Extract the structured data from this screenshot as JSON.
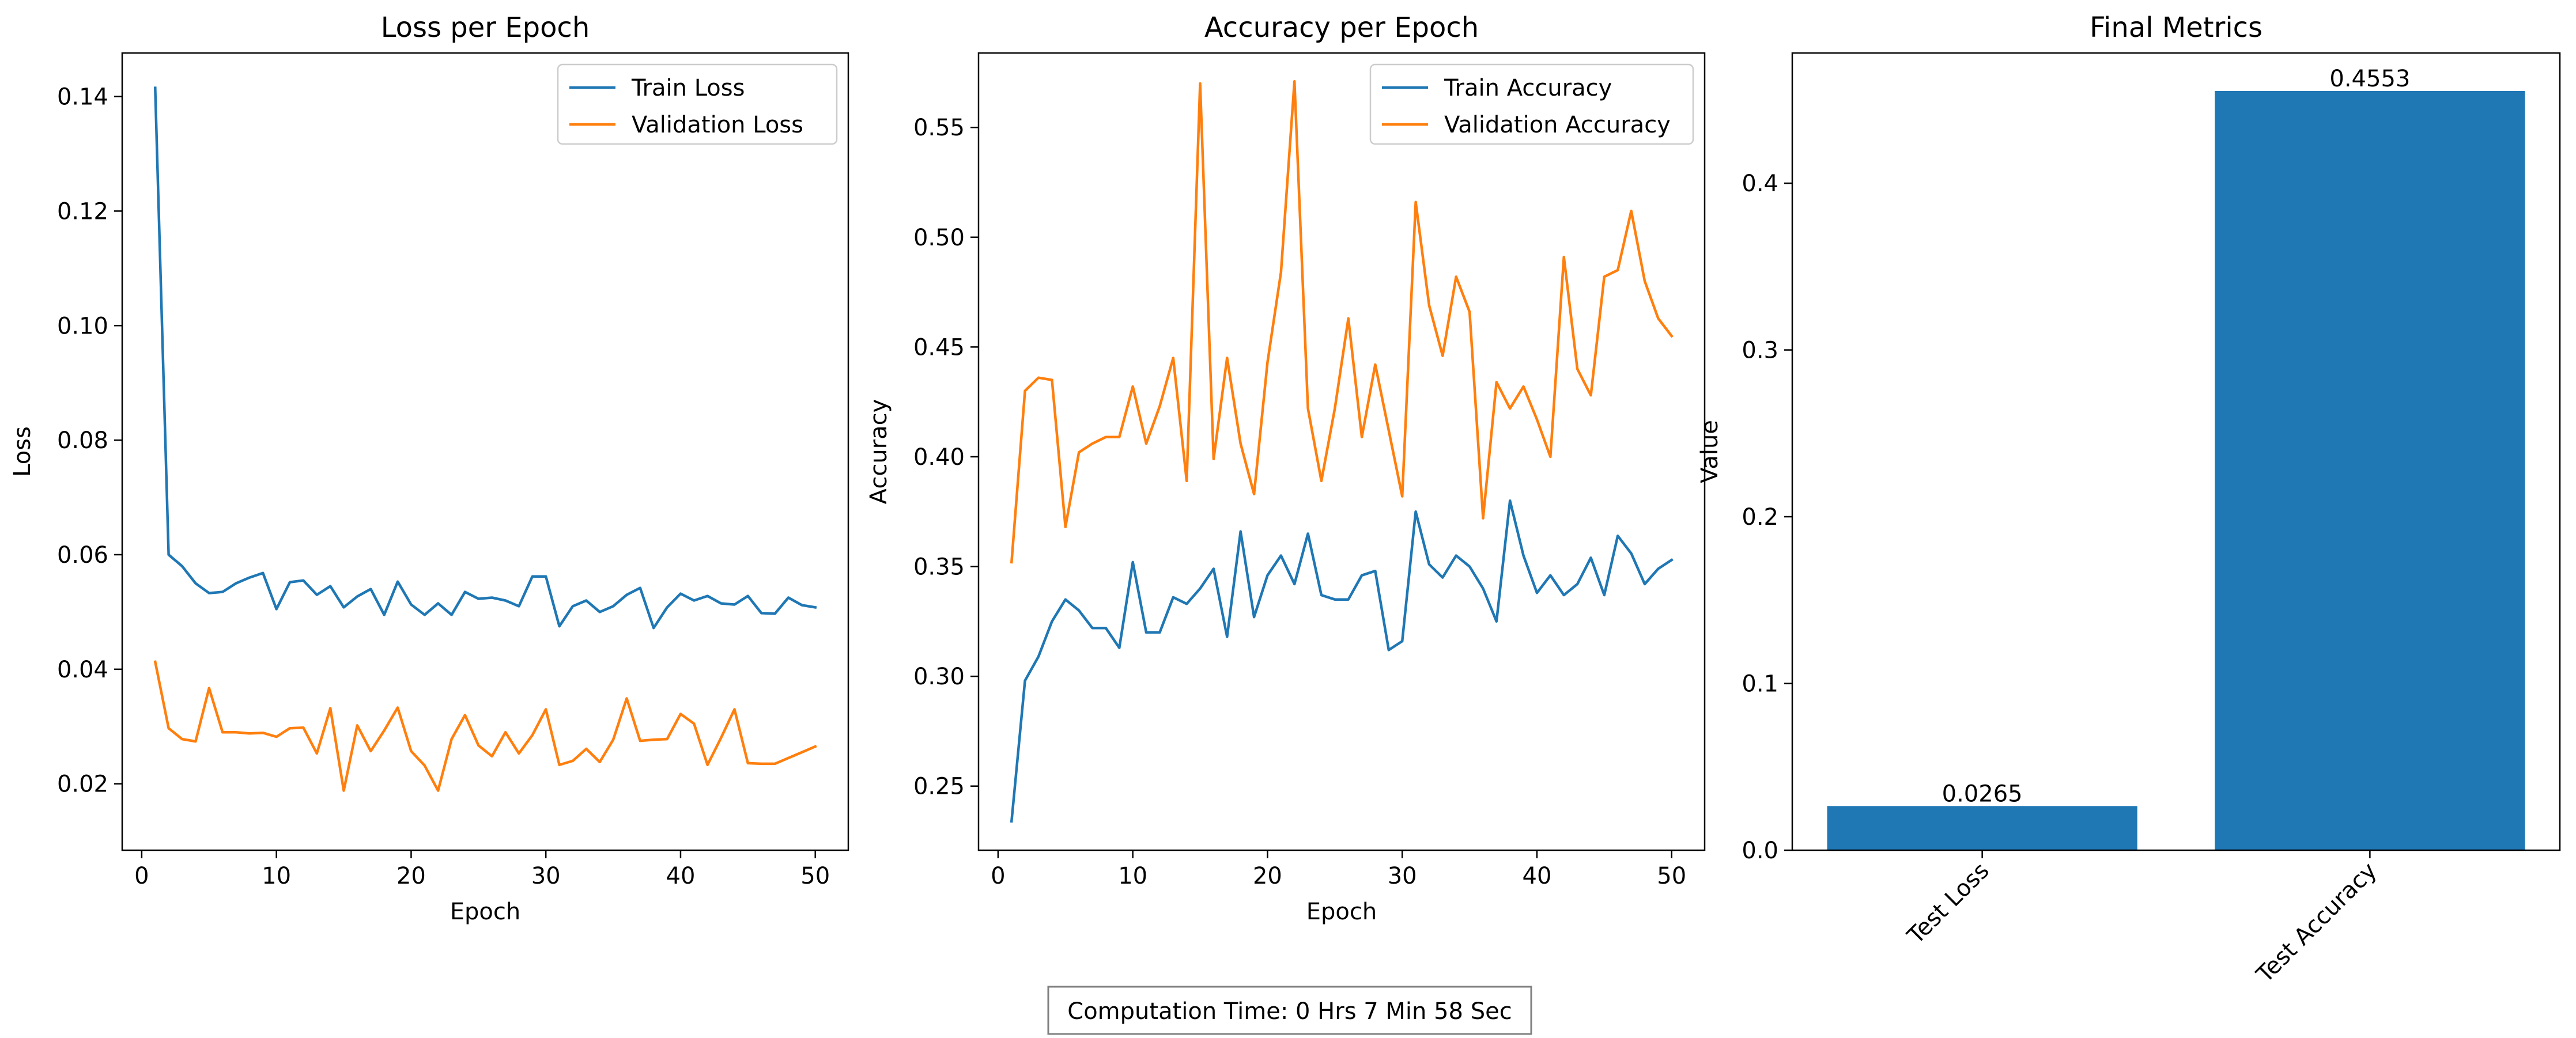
{
  "chart_data": [
    {
      "type": "line",
      "title": "Loss per Epoch",
      "xlabel": "Epoch",
      "ylabel": "Loss",
      "xlim": [
        -1.45,
        52.45
      ],
      "ylim": [
        0.0084,
        0.1476
      ],
      "xticks": [
        0,
        10,
        20,
        30,
        40,
        50
      ],
      "yticks": [
        0.02,
        0.04,
        0.06,
        0.08,
        0.1,
        0.12,
        0.14
      ],
      "ytick_labels": [
        "0.02",
        "0.04",
        "0.06",
        "0.08",
        "0.10",
        "0.12",
        "0.14"
      ],
      "legend": "top-right",
      "grid": false,
      "x": [
        1,
        2,
        3,
        4,
        5,
        6,
        7,
        8,
        9,
        10,
        11,
        12,
        13,
        14,
        15,
        16,
        17,
        18,
        19,
        20,
        21,
        22,
        23,
        24,
        25,
        26,
        27,
        28,
        29,
        30,
        31,
        32,
        33,
        34,
        35,
        36,
        37,
        38,
        39,
        40,
        41,
        42,
        43,
        44,
        45,
        46,
        47,
        48,
        49,
        50
      ],
      "series": [
        {
          "name": "Train Loss",
          "color": "#1f77b4",
          "values": [
            0.1415,
            0.06,
            0.058,
            0.055,
            0.0533,
            0.0535,
            0.055,
            0.056,
            0.0568,
            0.0505,
            0.0552,
            0.0555,
            0.053,
            0.0545,
            0.0508,
            0.0527,
            0.054,
            0.0495,
            0.0553,
            0.0513,
            0.0495,
            0.0515,
            0.0495,
            0.0535,
            0.0523,
            0.0525,
            0.052,
            0.051,
            0.0562,
            0.0562,
            0.0475,
            0.051,
            0.052,
            0.05,
            0.051,
            0.053,
            0.0542,
            0.0472,
            0.0508,
            0.0532,
            0.052,
            0.0528,
            0.0515,
            0.0513,
            0.0528,
            0.0498,
            0.0497,
            0.0525,
            0.0512,
            0.0508
          ]
        },
        {
          "name": "Validation Loss",
          "color": "#ff7f0e",
          "values": [
            0.0413,
            0.0297,
            0.0278,
            0.0274,
            0.0367,
            0.029,
            0.029,
            0.0288,
            0.0289,
            0.0282,
            0.0297,
            0.0298,
            0.0253,
            0.0332,
            0.0188,
            0.0302,
            0.0257,
            0.0293,
            0.0333,
            0.0257,
            0.0232,
            0.0188,
            0.0278,
            0.032,
            0.0267,
            0.0248,
            0.029,
            0.0253,
            0.0285,
            0.033,
            0.0233,
            0.024,
            0.0261,
            0.0238,
            0.0277,
            0.0349,
            0.0275,
            0.0277,
            0.0278,
            0.0322,
            0.0305,
            0.0233,
            0.028,
            0.033,
            0.0236,
            0.0235,
            0.0235,
            0.0245,
            0.0255,
            0.0265
          ]
        }
      ]
    },
    {
      "type": "line",
      "title": "Accuracy per Epoch",
      "xlabel": "Epoch",
      "ylabel": "Accuracy",
      "xlim": [
        -1.45,
        52.45
      ],
      "ylim": [
        0.2208,
        0.5839
      ],
      "xticks": [
        0,
        10,
        20,
        30,
        40,
        50
      ],
      "yticks": [
        0.25,
        0.3,
        0.35,
        0.4,
        0.45,
        0.5,
        0.55
      ],
      "ytick_labels": [
        "0.25",
        "0.30",
        "0.35",
        "0.40",
        "0.45",
        "0.50",
        "0.55"
      ],
      "legend": "top-right",
      "grid": false,
      "x": [
        1,
        2,
        3,
        4,
        5,
        6,
        7,
        8,
        9,
        10,
        11,
        12,
        13,
        14,
        15,
        16,
        17,
        18,
        19,
        20,
        21,
        22,
        23,
        24,
        25,
        26,
        27,
        28,
        29,
        30,
        31,
        32,
        33,
        34,
        35,
        36,
        37,
        38,
        39,
        40,
        41,
        42,
        43,
        44,
        45,
        46,
        47,
        48,
        49,
        50
      ],
      "series": [
        {
          "name": "Train Accuracy",
          "color": "#1f77b4",
          "values": [
            0.234,
            0.298,
            0.309,
            0.325,
            0.335,
            0.33,
            0.322,
            0.322,
            0.313,
            0.352,
            0.32,
            0.32,
            0.336,
            0.333,
            0.34,
            0.349,
            0.318,
            0.366,
            0.327,
            0.346,
            0.355,
            0.342,
            0.365,
            0.337,
            0.335,
            0.335,
            0.346,
            0.348,
            0.312,
            0.316,
            0.375,
            0.351,
            0.345,
            0.355,
            0.35,
            0.34,
            0.325,
            0.38,
            0.355,
            0.338,
            0.346,
            0.337,
            0.342,
            0.354,
            0.337,
            0.364,
            0.356,
            0.342,
            0.349,
            0.353
          ]
        },
        {
          "name": "Validation Accuracy",
          "color": "#ff7f0e",
          "values": [
            0.352,
            0.43,
            0.436,
            0.435,
            0.368,
            0.402,
            0.406,
            0.409,
            0.409,
            0.432,
            0.406,
            0.423,
            0.445,
            0.389,
            0.57,
            0.399,
            0.445,
            0.406,
            0.383,
            0.443,
            0.484,
            0.571,
            0.422,
            0.389,
            0.422,
            0.463,
            0.409,
            0.442,
            0.412,
            0.382,
            0.516,
            0.469,
            0.446,
            0.482,
            0.466,
            0.372,
            0.434,
            0.422,
            0.432,
            0.417,
            0.4,
            0.491,
            0.44,
            0.428,
            0.482,
            0.485,
            0.512,
            0.48,
            0.463,
            0.455
          ]
        }
      ]
    },
    {
      "type": "bar",
      "title": "Final Metrics",
      "xlabel": "",
      "ylabel": "Value",
      "ylim": [
        0,
        0.4781
      ],
      "yticks": [
        0.0,
        0.1,
        0.2,
        0.3,
        0.4
      ],
      "ytick_labels": [
        "0.0",
        "0.1",
        "0.2",
        "0.3",
        "0.4"
      ],
      "categories": [
        "Test Loss",
        "Test Accuracy"
      ],
      "values": [
        0.0265,
        0.4553
      ],
      "value_labels": [
        "0.0265",
        "0.4553"
      ],
      "color": "#1f77b4",
      "grid": false
    }
  ],
  "footer": {
    "computation_time": "Computation Time: 0 Hrs 7 Min 58 Sec"
  }
}
